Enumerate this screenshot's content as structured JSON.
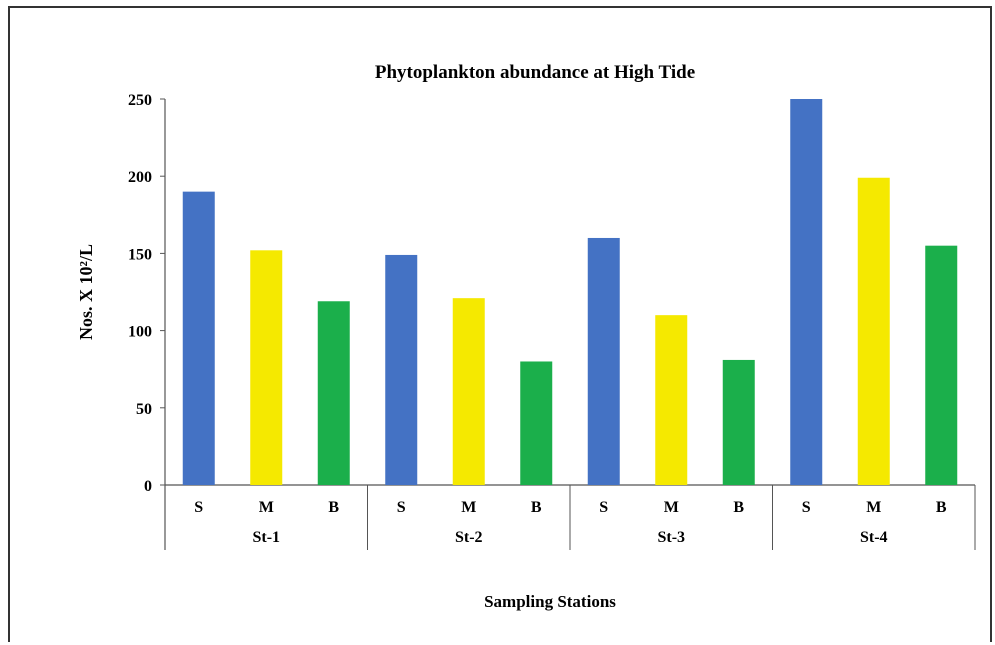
{
  "chart_data": {
    "type": "bar",
    "title": "Phytoplankton abundance at High Tide",
    "ylabel": "Nos. X 10²/L",
    "xlabel": "Sampling Stations",
    "ylim": [
      0,
      250
    ],
    "yticks": [
      0,
      50,
      100,
      150,
      200,
      250
    ],
    "groups": [
      {
        "name": "St-1",
        "bars": [
          {
            "label": "S",
            "value": 190
          },
          {
            "label": "M",
            "value": 152
          },
          {
            "label": "B",
            "value": 119
          }
        ]
      },
      {
        "name": "St-2",
        "bars": [
          {
            "label": "S",
            "value": 149
          },
          {
            "label": "M",
            "value": 121
          },
          {
            "label": "B",
            "value": 80
          }
        ]
      },
      {
        "name": "St-3",
        "bars": [
          {
            "label": "S",
            "value": 160
          },
          {
            "label": "M",
            "value": 110
          },
          {
            "label": "B",
            "value": 81
          }
        ]
      },
      {
        "name": "St-4",
        "bars": [
          {
            "label": "S",
            "value": 250
          },
          {
            "label": "M",
            "value": 199
          },
          {
            "label": "B",
            "value": 155
          }
        ]
      }
    ],
    "colors": {
      "S": "#4472C4",
      "M": "#F5E900",
      "B": "#1BAF4B"
    },
    "grid": false,
    "legend": "none"
  }
}
